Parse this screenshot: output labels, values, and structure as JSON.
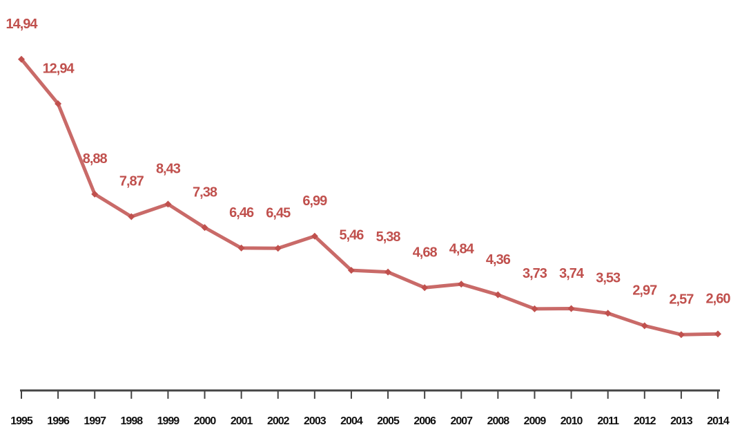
{
  "chart_data": {
    "type": "line",
    "categories": [
      "1995",
      "1996",
      "1997",
      "1998",
      "1999",
      "2000",
      "2001",
      "2002",
      "2003",
      "2004",
      "2005",
      "2006",
      "2007",
      "2008",
      "2009",
      "2010",
      "2011",
      "2012",
      "2013",
      "2014"
    ],
    "values": [
      14.94,
      12.94,
      8.88,
      7.87,
      8.43,
      7.38,
      6.46,
      6.45,
      6.99,
      5.46,
      5.38,
      4.68,
      4.84,
      4.36,
      3.73,
      3.74,
      3.53,
      2.97,
      2.57,
      2.6
    ],
    "value_labels": [
      "14,94",
      "12,94",
      "8,88",
      "7,87",
      "8,43",
      "7,38",
      "6,46",
      "6,45",
      "6,99",
      "5,46",
      "5,38",
      "4,68",
      "4,84",
      "4,36",
      "3,73",
      "3,74",
      "3,53",
      "2,97",
      "2,57",
      "2,60"
    ],
    "color": "#c0504d",
    "ylim": [
      0,
      17.6
    ]
  }
}
